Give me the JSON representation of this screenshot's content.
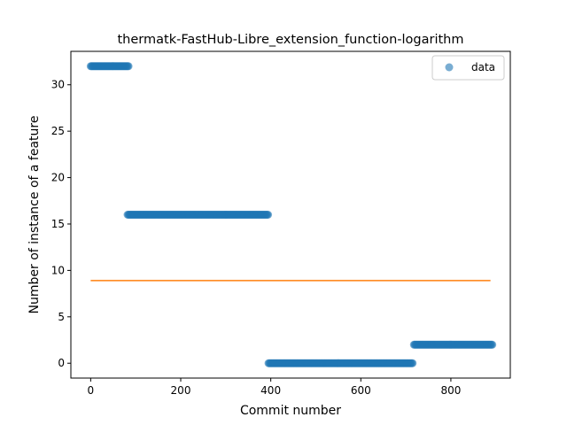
{
  "chart_data": {
    "type": "scatter",
    "title": "thermatk-FastHub-Libre_extension_function-logarithm",
    "xlabel": "Commit number",
    "ylabel": "Number of instance of a feature",
    "xlim": [
      -44,
      932
    ],
    "ylim": [
      -1.6,
      33.6
    ],
    "xticks": [
      0,
      200,
      400,
      600,
      800
    ],
    "yticks": [
      0,
      5,
      10,
      15,
      20,
      25,
      30
    ],
    "grid": false,
    "legend_position": "upper right",
    "series": [
      {
        "name": "data",
        "kind": "scatter",
        "color": "#1f77b4",
        "segments": [
          {
            "x_start": 0,
            "x_end": 85,
            "y": 32
          },
          {
            "x_start": 82,
            "x_end": 395,
            "y": 16
          },
          {
            "x_start": 395,
            "x_end": 715,
            "y": 0
          },
          {
            "x_start": 718,
            "x_end": 892,
            "y": 2
          }
        ]
      },
      {
        "kind": "line",
        "color": "#ff7f0e",
        "x": [
          0,
          888
        ],
        "y": [
          8.9,
          8.9
        ]
      }
    ]
  }
}
